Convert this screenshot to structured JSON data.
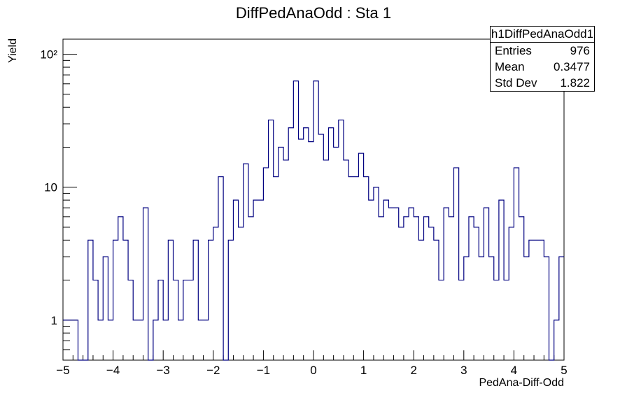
{
  "chart_data": {
    "type": "bar",
    "subtype": "histogram-step",
    "title": "DiffPedAnaOdd : Sta 1",
    "xlabel": "PedAna-Diff-Odd",
    "ylabel": "Yield",
    "yscale": "log",
    "xlim": [
      -5,
      5
    ],
    "ylim": [
      0.5,
      130
    ],
    "bin_width": 0.1,
    "bin_start": -5,
    "values": [
      1,
      1,
      1,
      0,
      0,
      4,
      2,
      1,
      3,
      1,
      4,
      6,
      4,
      2,
      1,
      1,
      7,
      0,
      1,
      2,
      1,
      4,
      2,
      1,
      2,
      2,
      4,
      1,
      1,
      4,
      5,
      12,
      0,
      4,
      8,
      5,
      15,
      6,
      8,
      8,
      14,
      32,
      12,
      20,
      16,
      28,
      63,
      23,
      28,
      22,
      63,
      25,
      16,
      28,
      20,
      32,
      16,
      12,
      12,
      18,
      12,
      8,
      10,
      6,
      8,
      7,
      7,
      5,
      6,
      7,
      6,
      4,
      6,
      5,
      4,
      2,
      7,
      6,
      14,
      2,
      3,
      6,
      5,
      3,
      7,
      3,
      2,
      8,
      2,
      5,
      14,
      6,
      3,
      4,
      4,
      4,
      3,
      0,
      1,
      3
    ],
    "x_ticks": [
      "−5",
      "−4",
      "−3",
      "−2",
      "−1",
      "0",
      "1",
      "2",
      "3",
      "4",
      "5"
    ],
    "y_ticks": [
      "1",
      "10",
      "10²"
    ],
    "line_color": "#000080",
    "grid": false
  },
  "stats": {
    "name": "h1DiffPedAnaOdd1",
    "rows": [
      {
        "label": "Entries",
        "value": "976"
      },
      {
        "label": "Mean",
        "value": "0.3477"
      },
      {
        "label": "Std Dev",
        "value": "1.822"
      }
    ]
  }
}
